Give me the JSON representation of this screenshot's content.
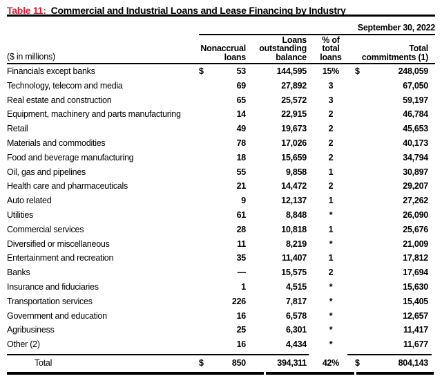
{
  "colors": {
    "accent_red": "#e31837",
    "text": "#000000",
    "background": "#ffffff"
  },
  "title": {
    "label": "Table 11:",
    "text": "Commercial and Industrial Loans and Lease Financing by Industry"
  },
  "header": {
    "date": "September 30, 2022",
    "unit_label": "($ in millions)",
    "col_nonaccrual": "Nonaccrual\nloans",
    "col_outstanding": "Loans\noutstanding\nbalance",
    "col_pct": "% of\ntotal\nloans",
    "col_commitments": "Total\ncommitments (1)"
  },
  "rows": [
    {
      "label": "Financials except banks",
      "currency": "$",
      "nonaccrual": "53",
      "outstanding": "144,595",
      "pct": "15%",
      "currency2": "$",
      "commitments": "248,059"
    },
    {
      "label": "Technology, telecom and media",
      "currency": "",
      "nonaccrual": "69",
      "outstanding": "27,892",
      "pct": "3",
      "currency2": "",
      "commitments": "67,050"
    },
    {
      "label": "Real estate and construction",
      "currency": "",
      "nonaccrual": "65",
      "outstanding": "25,572",
      "pct": "3",
      "currency2": "",
      "commitments": "59,197"
    },
    {
      "label": "Equipment, machinery and parts manufacturing",
      "currency": "",
      "nonaccrual": "14",
      "outstanding": "22,915",
      "pct": "2",
      "currency2": "",
      "commitments": "46,784"
    },
    {
      "label": "Retail",
      "currency": "",
      "nonaccrual": "49",
      "outstanding": "19,673",
      "pct": "2",
      "currency2": "",
      "commitments": "45,653"
    },
    {
      "label": "Materials and commodities",
      "currency": "",
      "nonaccrual": "78",
      "outstanding": "17,026",
      "pct": "2",
      "currency2": "",
      "commitments": "40,173"
    },
    {
      "label": "Food and beverage manufacturing",
      "currency": "",
      "nonaccrual": "18",
      "outstanding": "15,659",
      "pct": "2",
      "currency2": "",
      "commitments": "34,794"
    },
    {
      "label": "Oil, gas and pipelines",
      "currency": "",
      "nonaccrual": "55",
      "outstanding": "9,858",
      "pct": "1",
      "currency2": "",
      "commitments": "30,897"
    },
    {
      "label": "Health care and pharmaceuticals",
      "currency": "",
      "nonaccrual": "21",
      "outstanding": "14,472",
      "pct": "2",
      "currency2": "",
      "commitments": "29,207"
    },
    {
      "label": "Auto related",
      "currency": "",
      "nonaccrual": "9",
      "outstanding": "12,137",
      "pct": "1",
      "currency2": "",
      "commitments": "27,262"
    },
    {
      "label": "Utilities",
      "currency": "",
      "nonaccrual": "61",
      "outstanding": "8,848",
      "pct": "*",
      "currency2": "",
      "commitments": "26,090"
    },
    {
      "label": "Commercial services",
      "currency": "",
      "nonaccrual": "28",
      "outstanding": "10,818",
      "pct": "1",
      "currency2": "",
      "commitments": "25,676"
    },
    {
      "label": "Diversified or miscellaneous",
      "currency": "",
      "nonaccrual": "11",
      "outstanding": "8,219",
      "pct": "*",
      "currency2": "",
      "commitments": "21,009"
    },
    {
      "label": "Entertainment and recreation",
      "currency": "",
      "nonaccrual": "35",
      "outstanding": "11,407",
      "pct": "1",
      "currency2": "",
      "commitments": "17,812"
    },
    {
      "label": "Banks",
      "currency": "",
      "nonaccrual": "—",
      "outstanding": "15,575",
      "pct": "2",
      "currency2": "",
      "commitments": "17,694"
    },
    {
      "label": "Insurance and fiduciaries",
      "currency": "",
      "nonaccrual": "1",
      "outstanding": "4,515",
      "pct": "*",
      "currency2": "",
      "commitments": "15,630"
    },
    {
      "label": "Transportation services",
      "currency": "",
      "nonaccrual": "226",
      "outstanding": "7,817",
      "pct": "*",
      "currency2": "",
      "commitments": "15,405"
    },
    {
      "label": "Government and education",
      "currency": "",
      "nonaccrual": "16",
      "outstanding": "6,578",
      "pct": "*",
      "currency2": "",
      "commitments": "12,657"
    },
    {
      "label": "Agribusiness",
      "currency": "",
      "nonaccrual": "25",
      "outstanding": "6,301",
      "pct": "*",
      "currency2": "",
      "commitments": "11,417"
    },
    {
      "label": "Other (2)",
      "currency": "",
      "nonaccrual": "16",
      "outstanding": "4,434",
      "pct": "*",
      "currency2": "",
      "commitments": "11,677"
    }
  ],
  "total_row": {
    "label": "Total",
    "currency": "$",
    "nonaccrual": "850",
    "outstanding": "394,311",
    "pct": "42%",
    "currency2": "$",
    "commitments": "804,143"
  }
}
